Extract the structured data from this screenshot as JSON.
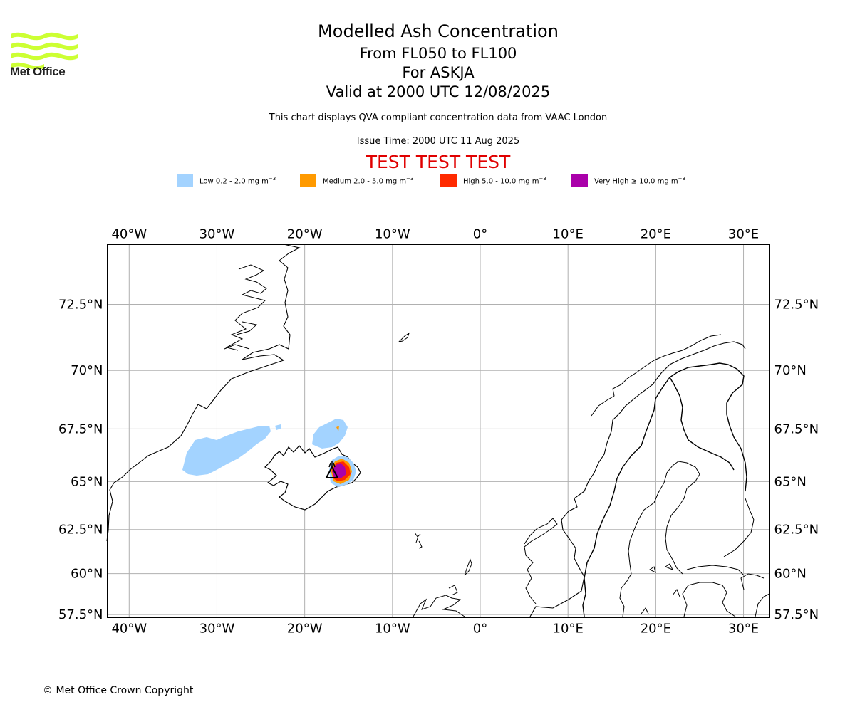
{
  "header": {
    "logo_text": "Met Office",
    "title": "Modelled Ash Concentration",
    "level_range": "From FL050 to FL100",
    "volcano": "For ASKJA",
    "valid_time": "Valid at 2000 UTC 12/08/2025",
    "compliance_note": "This chart displays QVA compliant concentration data from VAAC London",
    "issue_time": "Issue Time: 2000 UTC 11 Aug 2025",
    "test_banner": "TEST TEST TEST"
  },
  "legend": [
    {
      "label": "Low 0.2 - 2.0 mg m",
      "sup": "−3",
      "color": "#a3d3ff"
    },
    {
      "label": "Medium 2.0 - 5.0 mg m",
      "sup": "−3",
      "color": "#ff9a00"
    },
    {
      "label": "High 5.0 - 10.0 mg m",
      "sup": "−3",
      "color": "#ff2a00"
    },
    {
      "label": "Very High  ≥  10.0 mg m",
      "sup": "−3",
      "color": "#aa00aa"
    }
  ],
  "map": {
    "projection": "Mercator",
    "lon_range": [
      -42.5,
      33
    ],
    "lat_range": [
      57.3,
      74.5
    ],
    "lon_ticks": [
      {
        "value": -40,
        "label": "40°W"
      },
      {
        "value": -30,
        "label": "30°W"
      },
      {
        "value": -20,
        "label": "20°W"
      },
      {
        "value": -10,
        "label": "10°W"
      },
      {
        "value": 0,
        "label": "0°"
      },
      {
        "value": 10,
        "label": "10°E"
      },
      {
        "value": 20,
        "label": "20°E"
      },
      {
        "value": 30,
        "label": "30°E"
      }
    ],
    "lat_ticks": [
      {
        "value": 72.5,
        "label": "72.5°N"
      },
      {
        "value": 70,
        "label": "70°N"
      },
      {
        "value": 67.5,
        "label": "67.5°N"
      },
      {
        "value": 65,
        "label": "65°N"
      },
      {
        "value": 62.5,
        "label": "62.5°N"
      },
      {
        "value": 60,
        "label": "60°N"
      },
      {
        "value": 57.5,
        "label": "57.5°N"
      }
    ],
    "grid": true,
    "volcano_marker": {
      "name": "ASKJA",
      "lon": -16.75,
      "lat": 65.03,
      "symbol": "triangle"
    },
    "ash_regions": [
      {
        "level": "Low",
        "area": "East Greenland coast, near 30°W 66°N"
      },
      {
        "level": "Low",
        "area": "North of Iceland, near 17°W 67°N"
      },
      {
        "level": "Low to Very High",
        "area": "North-east Iceland around Askja"
      }
    ]
  },
  "footer": {
    "copyright": "© Met Office Crown Copyright"
  },
  "colors": {
    "test_banner": "#e00000",
    "coastline": "#000000",
    "gridline": "#b0b0b0",
    "logo": "#ccff33"
  }
}
